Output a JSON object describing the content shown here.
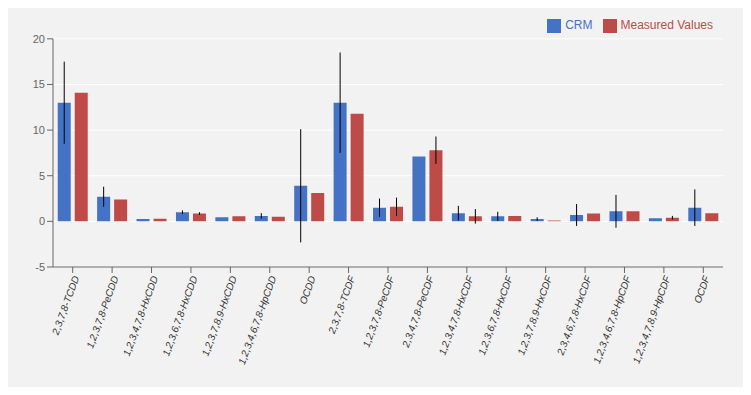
{
  "chart_data": {
    "type": "bar",
    "categories": [
      "2,3,7,8-TCDD",
      "1,2,3,7,8-PeCDD",
      "1,2,3,4,7,8-HxCDD",
      "1,2,3,6,7,8-HxCDD",
      "1,2,3,7,8,9-HxCDD",
      "1,2,3,4,6,7,8-HpCDD",
      "OCDD",
      "2,3,7,8-TCDF",
      "1,2,3,7,8-PeCDF",
      "2,3,4,7,8-PeCDF",
      "1,2,3,4,7,8-HxCDF",
      "1,2,3,6,7,8-HxCDF",
      "1,2,3,7,8,9-HxCDF",
      "2,3,4,6,7,8-HxCDF",
      "1,2,3,4,6,7,8-HpCDF",
      "1,2,3,4,7,8,9-HpCDF",
      "OCDF"
    ],
    "series": [
      {
        "name": "CRM",
        "color": "#4472C4",
        "values": [
          13.0,
          2.7,
          0.25,
          1.0,
          0.45,
          0.6,
          3.9,
          13.0,
          1.5,
          7.1,
          0.9,
          0.55,
          0.25,
          0.7,
          1.1,
          0.35,
          1.5
        ],
        "errors": [
          4.5,
          1.1,
          0.0,
          0.2,
          0.0,
          0.3,
          6.2,
          5.5,
          1.0,
          0.0,
          0.8,
          0.5,
          0.2,
          1.2,
          1.8,
          0.0,
          2.0
        ]
      },
      {
        "name": "Measured Values",
        "color": "#BE4B48",
        "values": [
          14.1,
          2.4,
          0.3,
          0.85,
          0.55,
          0.5,
          3.1,
          11.8,
          1.6,
          7.8,
          0.55,
          0.6,
          0.1,
          0.85,
          1.1,
          0.4,
          0.9
        ],
        "errors": [
          0.0,
          0.0,
          0.0,
          0.15,
          0.0,
          0.0,
          0.0,
          0.0,
          1.0,
          1.5,
          0.8,
          0.0,
          0.0,
          0.0,
          0.0,
          0.2,
          0.0
        ]
      }
    ],
    "ylim": [
      -5,
      20
    ],
    "yticks": [
      -5,
      0,
      5,
      10,
      15,
      20
    ],
    "grid": true,
    "legend": "upper right"
  }
}
